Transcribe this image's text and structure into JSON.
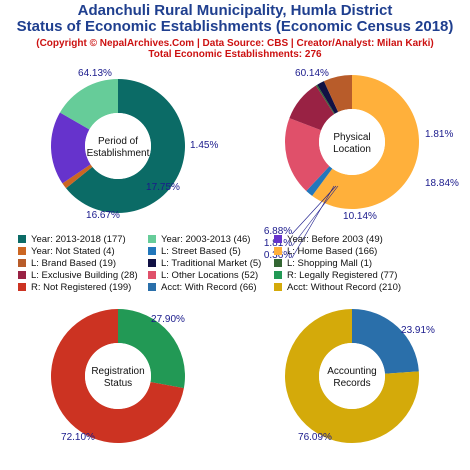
{
  "header": {
    "title1": "Adanchuli Rural Municipality, Humla District",
    "title2": "Status of Economic Establishments (Economic Census 2018)",
    "copyright": "(Copyright © NepalArchives.Com | Data Source: CBS | Creator/Analyst: Milan Karki)",
    "total": "Total Economic Establishments: 276"
  },
  "legend": [
    {
      "label": "Year: 2013-2018 (177)",
      "color": "#0b6b66"
    },
    {
      "label": "Year: 2003-2013 (46)",
      "color": "#66cc99"
    },
    {
      "label": "Year: Before 2003 (49)",
      "color": "#6633cc"
    },
    {
      "label": "Year: Not Stated (4)",
      "color": "#cc6622"
    },
    {
      "label": "L: Street Based (5)",
      "color": "#2277bb"
    },
    {
      "label": "L: Home Based (166)",
      "color": "#ffb03b"
    },
    {
      "label": "L: Brand Based (19)",
      "color": "#b85c2a"
    },
    {
      "label": "L: Traditional Market (5)",
      "color": "#111144"
    },
    {
      "label": "L: Shopping Mall (1)",
      "color": "#336633"
    },
    {
      "label": "L: Exclusive Building (28)",
      "color": "#992244"
    },
    {
      "label": "L: Other Locations (52)",
      "color": "#e0506a"
    },
    {
      "label": "R: Legally Registered (77)",
      "color": "#229955"
    },
    {
      "label": "R: Not Registered (199)",
      "color": "#cc3322"
    },
    {
      "label": "Acct: With Record (66)",
      "color": "#2a6faa"
    },
    {
      "label": "Acct: Without Record (210)",
      "color": "#d4aa0a"
    }
  ],
  "chart_data": [
    {
      "type": "pie",
      "center_label": [
        "Period of",
        "Establishment"
      ],
      "slices": [
        {
          "label": "Year: 2013-2018",
          "value": 177,
          "pct_label": "64.13%",
          "color": "#0b6b66"
        },
        {
          "label": "Year: Not Stated",
          "value": 4,
          "pct_label": "1.45%",
          "color": "#cc6622"
        },
        {
          "label": "Year: Before 2003",
          "value": 49,
          "pct_label": "17.75%",
          "color": "#6633cc"
        },
        {
          "label": "Year: 2003-2013",
          "value": 46,
          "pct_label": "16.67%",
          "color": "#66cc99"
        }
      ]
    },
    {
      "type": "pie",
      "center_label": [
        "Physical",
        "Location"
      ],
      "slices": [
        {
          "label": "L: Home Based",
          "value": 166,
          "pct_label": "60.14%",
          "color": "#ffb03b"
        },
        {
          "label": "L: Street Based",
          "value": 5,
          "pct_label": "1.81%",
          "color": "#2277bb"
        },
        {
          "label": "L: Other Locations",
          "value": 52,
          "pct_label": "18.84%",
          "color": "#e0506a"
        },
        {
          "label": "L: Exclusive Building",
          "value": 28,
          "pct_label": "10.14%",
          "color": "#992244"
        },
        {
          "label": "L: Shopping Mall",
          "value": 1,
          "pct_label": "0.36%",
          "color": "#336633"
        },
        {
          "label": "L: Traditional Market",
          "value": 5,
          "pct_label": "1.81%",
          "color": "#111144"
        },
        {
          "label": "L: Brand Based",
          "value": 19,
          "pct_label": "6.88%",
          "color": "#b85c2a"
        }
      ]
    },
    {
      "type": "pie",
      "center_label": [
        "Registration",
        "Status"
      ],
      "slices": [
        {
          "label": "R: Legally Registered",
          "value": 77,
          "pct_label": "27.90%",
          "color": "#229955"
        },
        {
          "label": "R: Not Registered",
          "value": 199,
          "pct_label": "72.10%",
          "color": "#cc3322"
        }
      ]
    },
    {
      "type": "pie",
      "center_label": [
        "Accounting",
        "Records"
      ],
      "slices": [
        {
          "label": "Acct: With Record",
          "value": 66,
          "pct_label": "23.91%",
          "color": "#2a6faa"
        },
        {
          "label": "Acct: Without Record",
          "value": 210,
          "pct_label": "76.09%",
          "color": "#d4aa0a"
        }
      ]
    }
  ]
}
